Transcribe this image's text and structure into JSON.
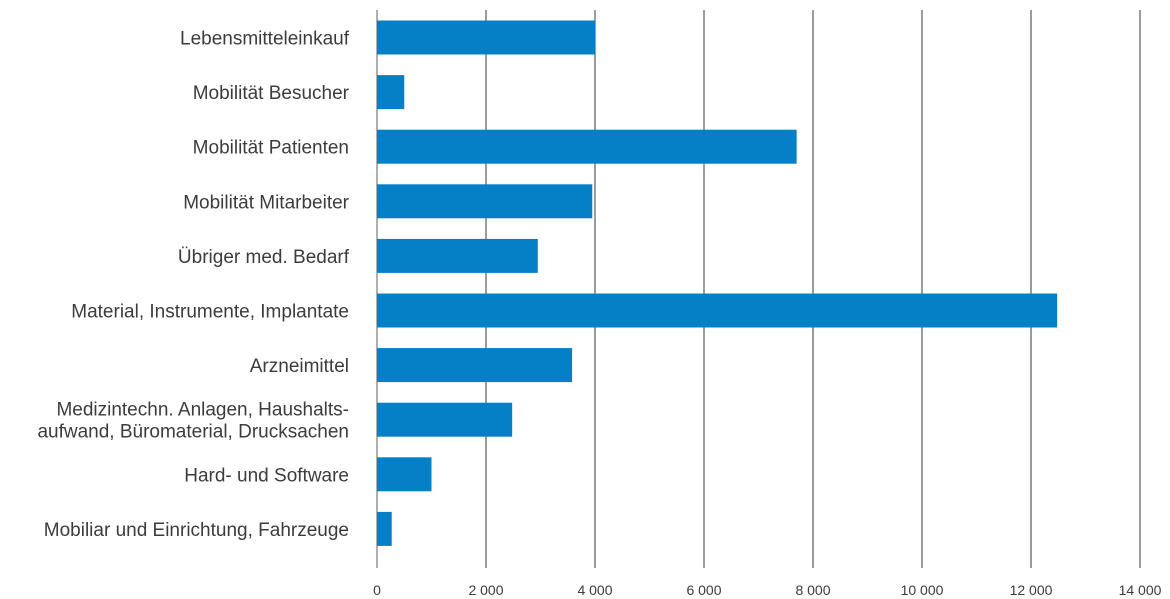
{
  "chart_data": {
    "type": "bar",
    "orientation": "horizontal",
    "categories": [
      [
        "Lebensmitteleinkauf"
      ],
      [
        "Mobilität Besucher"
      ],
      [
        "Mobilität Patienten"
      ],
      [
        "Mobilität Mitarbeiter"
      ],
      [
        "Übriger med. Bedarf"
      ],
      [
        "Material, Instrumente, Implantate"
      ],
      [
        "Arzneimittel"
      ],
      [
        "Medizintechn. Anlagen, Haushalts-",
        "aufwand, Büromaterial, Drucksachen"
      ],
      [
        "Hard- und Software"
      ],
      [
        "Mobiliar und Einrichtung, Fahrzeuge"
      ]
    ],
    "values": [
      4000,
      500,
      7700,
      3950,
      2950,
      12480,
      3580,
      2480,
      1000,
      270
    ],
    "xlim": [
      0,
      14000
    ],
    "xticks": [
      0,
      2000,
      4000,
      6000,
      8000,
      10000,
      12000,
      14000
    ],
    "xtick_labels": [
      "0",
      "2 000",
      "4 000",
      "6 000",
      "8 000",
      "10 000",
      "12 000",
      "14 000"
    ],
    "grid": "vertical",
    "bar_color": "#0580c6"
  }
}
